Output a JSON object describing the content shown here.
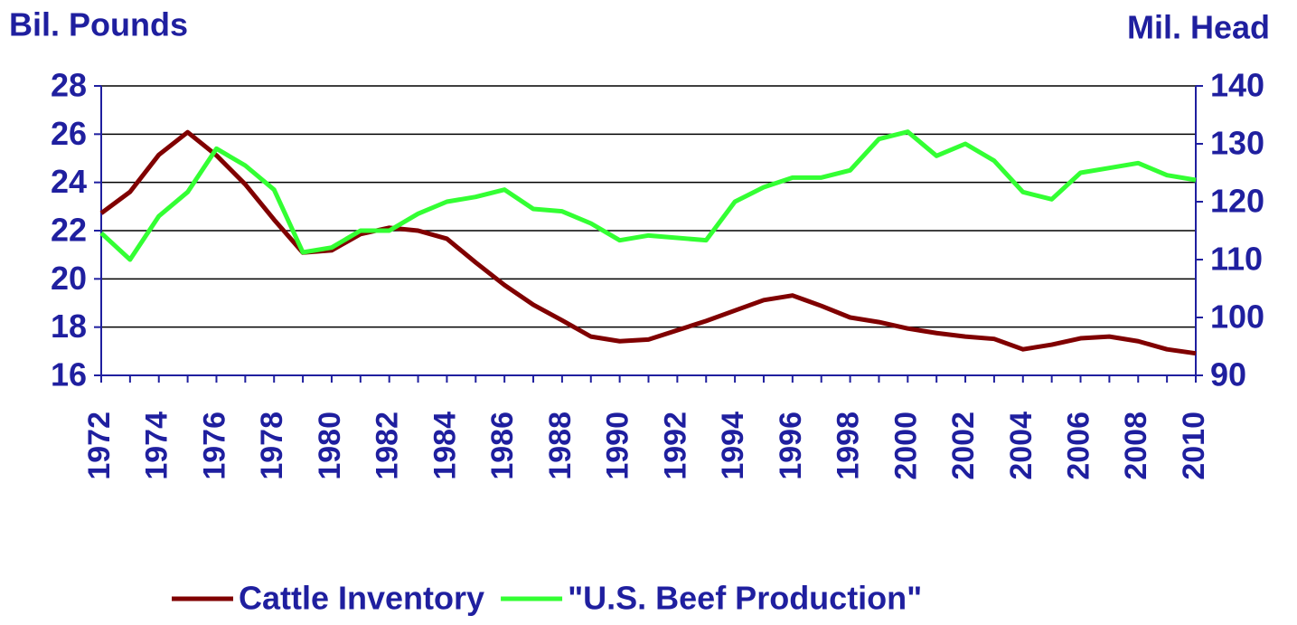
{
  "chart_data": {
    "type": "line",
    "y_label": "Bil. Pounds",
    "y2_label": "Mil. Head",
    "categories": [
      "1972",
      null,
      "1974",
      null,
      "1976",
      null,
      "1978",
      null,
      "1980",
      null,
      "1982",
      null,
      "1984",
      null,
      "1986",
      null,
      "1988",
      null,
      "1990",
      null,
      "1992",
      null,
      "1994",
      null,
      "1996",
      null,
      "1998",
      null,
      "2000",
      null,
      "2002",
      null,
      "2004",
      null,
      "2006",
      null,
      "2008",
      null,
      "2010"
    ],
    "series": [
      {
        "name": "Cattle Inventory",
        "color": "#800000",
        "axis": "y2",
        "values": [
          118.0,
          121.7,
          128.1,
          132.0,
          128.0,
          123.0,
          116.9,
          111.2,
          111.6,
          114.4,
          115.5,
          115.0,
          113.6,
          109.5,
          105.6,
          102.2,
          99.5,
          96.7,
          95.9,
          96.2,
          97.8,
          99.4,
          101.2,
          103.0,
          103.8,
          102.0,
          100.0,
          99.2,
          98.1,
          97.3,
          96.7,
          96.3,
          94.5,
          95.3,
          96.4,
          96.7,
          95.9,
          94.5,
          93.8
        ]
      },
      {
        "name": "\"U.S. Beef Production\"",
        "color": "#33ff33",
        "values": [
          21.9,
          20.8,
          22.6,
          23.6,
          25.4,
          24.7,
          23.7,
          21.1,
          21.3,
          22.0,
          22.0,
          22.7,
          23.2,
          23.4,
          23.7,
          22.9,
          22.8,
          22.3,
          21.6,
          21.8,
          21.7,
          21.6,
          23.2,
          23.8,
          24.2,
          24.2,
          24.5,
          25.8,
          26.1,
          25.1,
          25.6,
          24.9,
          23.6,
          23.3,
          24.4,
          24.6,
          24.8,
          24.3,
          24.1
        ]
      }
    ],
    "ylim": [
      16,
      28
    ],
    "yticks": [
      16,
      18,
      20,
      22,
      24,
      26,
      28
    ],
    "y2lim": [
      90,
      140
    ],
    "y2ticks": [
      90,
      100,
      110,
      120,
      130,
      140
    ],
    "grid": true,
    "legend": "bottom"
  }
}
